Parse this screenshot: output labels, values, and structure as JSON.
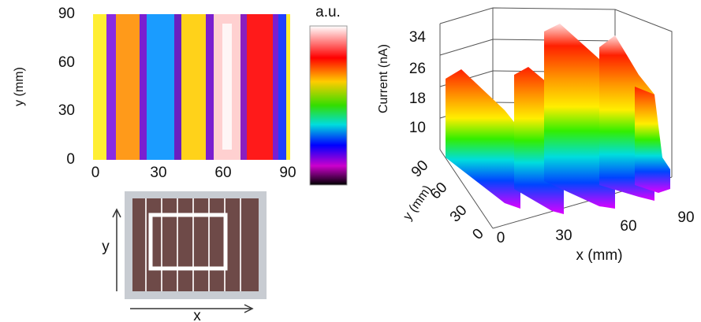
{
  "heatmap": {
    "y_label": "y (mm)",
    "y_ticks": [
      90,
      60,
      30,
      0
    ],
    "x_ticks": [
      0,
      30,
      60,
      90
    ],
    "colorbar_label": "a.u."
  },
  "photo": {
    "x_label": "x",
    "y_label": "y"
  },
  "surface": {
    "z_label": "Current (nA)",
    "z_ticks": [
      34,
      26,
      18,
      10
    ],
    "y_label": "y (mm)",
    "y_ticks": [
      90,
      60,
      30,
      0
    ],
    "x_label": "x (mm)",
    "x_ticks": [
      0,
      30,
      60,
      90
    ]
  }
}
